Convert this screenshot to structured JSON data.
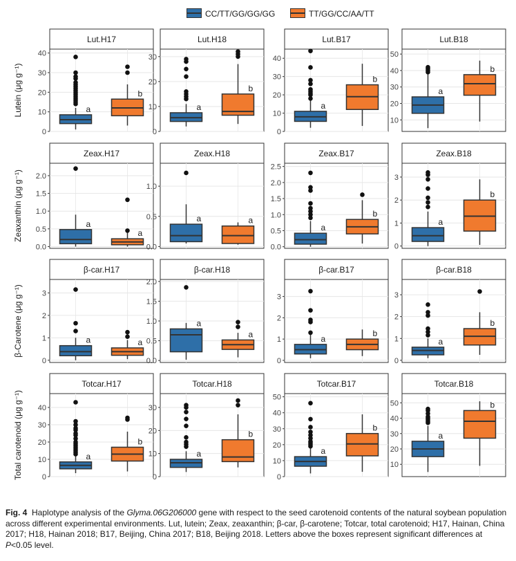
{
  "legend": [
    {
      "label": "CC/TT/GG/GG/GG",
      "color": "#2e6fa8"
    },
    {
      "label": "TT/GG/CC/AA/TT",
      "color": "#f07a2e"
    }
  ],
  "caption": {
    "fig": "Fig. 4",
    "pre": "Haplotype analysis of the",
    "gene": "Glyma.06G206000",
    "body": "gene with respect to the seed carotenoid contents of the natural soybean population across different experimental environments.  Lut, lutein; Zeax, zeaxanthin; β-car, β-carotene; Totcar, total carotenoid; H17, Hainan, China 2017; H18, Hainan 2018; B17, Beijing, China 2017; B18, Beijing 2018.  Letters above the boxes represent significant differences at",
    "p": "P",
    "post": "<0.05 level."
  },
  "chart_data": {
    "type": "boxplot",
    "groups": [
      "CC/TT/GG/GG/GG",
      "TT/GG/CC/AA/TT"
    ],
    "rows": [
      {
        "ylabel": "Lutein (μg g⁻¹)",
        "panels": [
          {
            "title": "Lut.H17",
            "ylim": [
              0,
              42
            ],
            "ticks": [
              0,
              10,
              20,
              30,
              40
            ],
            "boxes": [
              {
                "group": 0,
                "min": 1,
                "q1": 4,
                "median": 6,
                "q3": 8.5,
                "max": 12,
                "outliers": [
                  14,
                  15,
                  16,
                  17,
                  18,
                  19,
                  20,
                  21,
                  22,
                  23,
                  24,
                  25,
                  27,
                  28,
                  30,
                  38
                ],
                "letter": "a"
              },
              {
                "group": 1,
                "min": 3,
                "q1": 8,
                "median": 12,
                "q3": 16.5,
                "max": 24,
                "outliers": [
                  30,
                  33
                ],
                "letter": "b"
              }
            ]
          },
          {
            "title": "Lut.H18",
            "ylim": [
              0,
              33
            ],
            "ticks": [
              0,
              10,
              20,
              30
            ],
            "boxes": [
              {
                "group": 0,
                "min": 2,
                "q1": 4,
                "median": 5.5,
                "q3": 7.5,
                "max": 11,
                "outliers": [
                  13,
                  14,
                  15,
                  16,
                  22,
                  25,
                  28,
                  29
                ],
                "letter": "a"
              },
              {
                "group": 1,
                "min": 3,
                "q1": 6.5,
                "median": 8,
                "q3": 15,
                "max": 27,
                "outliers": [
                  30,
                  31,
                  32
                ],
                "letter": "b"
              }
            ]
          },
          {
            "title": "Lut.B17",
            "ylim": [
              0,
              45
            ],
            "ticks": [
              0,
              10,
              20,
              30,
              40
            ],
            "boxes": [
              {
                "group": 0,
                "min": 2,
                "q1": 5.5,
                "median": 8,
                "q3": 11,
                "max": 17,
                "outliers": [
                  18,
                  20,
                  21,
                  22,
                  23,
                  26,
                  28,
                  35,
                  44
                ],
                "letter": "a"
              },
              {
                "group": 1,
                "min": 3,
                "q1": 12,
                "median": 19,
                "q3": 25.5,
                "max": 37,
                "outliers": [],
                "letter": "b"
              }
            ]
          },
          {
            "title": "Lut.B18",
            "ylim": [
              3,
              53
            ],
            "ticks": [
              10,
              20,
              30,
              40,
              50
            ],
            "boxes": [
              {
                "group": 0,
                "min": 5,
                "q1": 14,
                "median": 19,
                "q3": 24,
                "max": 38,
                "outliers": [
                  39,
                  40,
                  41,
                  42
                ],
                "letter": "a"
              },
              {
                "group": 1,
                "min": 9,
                "q1": 25,
                "median": 32,
                "q3": 37.5,
                "max": 46,
                "outliers": [],
                "letter": "b"
              }
            ]
          }
        ]
      },
      {
        "ylabel": "Zeaxanthin (μg g⁻¹)",
        "panels": [
          {
            "title": "Zeax.H17",
            "ylim": [
              -0.05,
              2.35
            ],
            "ticks": [
              0.0,
              0.5,
              1.0,
              1.5,
              2.0
            ],
            "boxes": [
              {
                "group": 0,
                "min": 0,
                "q1": 0.08,
                "median": 0.2,
                "q3": 0.48,
                "max": 0.9,
                "outliers": [
                  2.2
                ],
                "letter": "a"
              },
              {
                "group": 1,
                "min": 0,
                "q1": 0.05,
                "median": 0.13,
                "q3": 0.22,
                "max": 0.4,
                "outliers": [
                  0.45,
                  1.32
                ],
                "letter": "a"
              }
            ]
          },
          {
            "title": "Zeax.H18",
            "ylim": [
              -0.03,
              1.38
            ],
            "ticks": [
              0.0,
              0.5,
              1.0
            ],
            "boxes": [
              {
                "group": 0,
                "min": 0.05,
                "q1": 0.08,
                "median": 0.18,
                "q3": 0.37,
                "max": 0.7,
                "outliers": [
                  1.22
                ],
                "letter": "a"
              },
              {
                "group": 1,
                "min": 0.03,
                "q1": 0.05,
                "median": 0.18,
                "q3": 0.34,
                "max": 0.4,
                "outliers": [],
                "letter": "a"
              }
            ]
          },
          {
            "title": "Zeax.B17",
            "ylim": [
              -0.05,
              2.6
            ],
            "ticks": [
              0.0,
              0.5,
              1.0,
              1.5,
              2.0,
              2.5
            ],
            "boxes": [
              {
                "group": 0,
                "min": 0,
                "q1": 0.08,
                "median": 0.22,
                "q3": 0.42,
                "max": 0.8,
                "outliers": [
                  0.9,
                  1.0,
                  1.1,
                  1.2,
                  1.35,
                  1.75,
                  1.85,
                  2.3
                ],
                "letter": "a"
              },
              {
                "group": 1,
                "min": 0.1,
                "q1": 0.4,
                "median": 0.62,
                "q3": 0.85,
                "max": 1.45,
                "outliers": [
                  1.62
                ],
                "letter": "b"
              }
            ]
          },
          {
            "title": "Zeax.B18",
            "ylim": [
              -0.1,
              3.6
            ],
            "ticks": [
              0,
              1,
              2,
              3
            ],
            "boxes": [
              {
                "group": 0,
                "min": 0,
                "q1": 0.2,
                "median": 0.45,
                "q3": 0.8,
                "max": 1.5,
                "outliers": [
                  1.7,
                  1.9,
                  2.1,
                  2.5,
                  2.9,
                  3.1,
                  3.2
                ],
                "letter": "a"
              },
              {
                "group": 1,
                "min": 0.05,
                "q1": 0.65,
                "median": 1.3,
                "q3": 2.0,
                "max": 2.9,
                "outliers": [],
                "letter": "b"
              }
            ]
          }
        ]
      },
      {
        "ylabel": "β-Carotene (μg g⁻¹)",
        "panels": [
          {
            "title": "β-car.H17",
            "ylim": [
              -0.1,
              3.6
            ],
            "ticks": [
              0,
              1,
              2,
              3
            ],
            "boxes": [
              {
                "group": 0,
                "min": 0,
                "q1": 0.2,
                "median": 0.38,
                "q3": 0.65,
                "max": 1.0,
                "outliers": [
                  1.3,
                  1.65,
                  3.15
                ],
                "letter": "a"
              },
              {
                "group": 1,
                "min": 0.05,
                "q1": 0.22,
                "median": 0.38,
                "q3": 0.55,
                "max": 0.9,
                "outliers": [
                  1.05,
                  1.25
                ],
                "letter": "a"
              }
            ]
          },
          {
            "title": "β-car.H18",
            "ylim": [
              -0.05,
              2.05
            ],
            "ticks": [
              0.0,
              0.5,
              1.0,
              1.5,
              2.0
            ],
            "boxes": [
              {
                "group": 0,
                "min": 0.02,
                "q1": 0.22,
                "median": 0.65,
                "q3": 0.8,
                "max": 0.95,
                "outliers": [
                  1.85
                ],
                "letter": "a"
              },
              {
                "group": 1,
                "min": 0.08,
                "q1": 0.28,
                "median": 0.4,
                "q3": 0.52,
                "max": 0.7,
                "outliers": [
                  0.85,
                  0.97
                ],
                "letter": "a"
              }
            ]
          },
          {
            "title": "β-car.B17",
            "ylim": [
              -0.1,
              3.8
            ],
            "ticks": [
              0,
              1,
              2,
              3
            ],
            "boxes": [
              {
                "group": 0,
                "min": 0.1,
                "q1": 0.3,
                "median": 0.5,
                "q3": 0.75,
                "max": 1.2,
                "outliers": [
                  1.3,
                  1.8,
                  1.9,
                  2.35,
                  3.25
                ],
                "letter": "a"
              },
              {
                "group": 1,
                "min": 0.2,
                "q1": 0.5,
                "median": 0.75,
                "q3": 1.0,
                "max": 1.45,
                "outliers": [],
                "letter": "b"
              }
            ]
          },
          {
            "title": "β-car.B18",
            "ylim": [
              -0.1,
              3.7
            ],
            "ticks": [
              0,
              1,
              2,
              3
            ],
            "boxes": [
              {
                "group": 0,
                "min": 0.1,
                "q1": 0.25,
                "median": 0.45,
                "q3": 0.6,
                "max": 1.0,
                "outliers": [
                  1.15,
                  1.3,
                  1.45,
                  2.05,
                  2.2,
                  2.55
                ],
                "letter": "a"
              },
              {
                "group": 1,
                "min": 0.25,
                "q1": 0.7,
                "median": 1.1,
                "q3": 1.45,
                "max": 2.2,
                "outliers": [
                  3.15
                ],
                "letter": "b"
              }
            ]
          }
        ]
      },
      {
        "ylabel": "Total carotenoid (μg g⁻¹)",
        "panels": [
          {
            "title": "Totcar.H17",
            "ylim": [
              0,
              48
            ],
            "ticks": [
              0,
              10,
              20,
              30,
              40
            ],
            "boxes": [
              {
                "group": 0,
                "min": 2,
                "q1": 4.5,
                "median": 6.5,
                "q3": 8.5,
                "max": 12,
                "outliers": [
                  13,
                  14,
                  15,
                  16,
                  17,
                  18,
                  19,
                  20,
                  22,
                  24,
                  25,
                  27,
                  28,
                  30,
                  32,
                  43
                ],
                "letter": "a"
              },
              {
                "group": 1,
                "min": 3,
                "q1": 9,
                "median": 13,
                "q3": 17,
                "max": 26,
                "outliers": [
                  33,
                  34
                ],
                "letter": "b"
              }
            ]
          },
          {
            "title": "Totcar.H18",
            "ylim": [
              0,
              36
            ],
            "ticks": [
              0,
              10,
              20,
              30
            ],
            "boxes": [
              {
                "group": 0,
                "min": 2,
                "q1": 4,
                "median": 6,
                "q3": 7.5,
                "max": 11,
                "outliers": [
                  13,
                  14,
                  15,
                  17,
                  22,
                  25,
                  28,
                  30,
                  31
                ],
                "letter": "a"
              },
              {
                "group": 1,
                "min": 4,
                "q1": 6.5,
                "median": 8.5,
                "q3": 16,
                "max": 27,
                "outliers": [
                  31,
                  33
                ],
                "letter": "b"
              }
            ]
          },
          {
            "title": "Totcar.B17",
            "ylim": [
              0,
              52
            ],
            "ticks": [
              0,
              10,
              20,
              30,
              40,
              50
            ],
            "boxes": [
              {
                "group": 0,
                "min": 2,
                "q1": 6.5,
                "median": 9.5,
                "q3": 12.5,
                "max": 18,
                "outliers": [
                  19,
                  20,
                  21,
                  22,
                  24,
                  26,
                  28,
                  31,
                  36,
                  46
                ],
                "letter": "a"
              },
              {
                "group": 1,
                "min": 3,
                "q1": 13,
                "median": 20.5,
                "q3": 27,
                "max": 39,
                "outliers": [],
                "letter": "b"
              }
            ]
          },
          {
            "title": "Totcar.B18",
            "ylim": [
              2,
              56
            ],
            "ticks": [
              10,
              20,
              30,
              40,
              50
            ],
            "boxes": [
              {
                "group": 0,
                "min": 5,
                "q1": 15,
                "median": 20,
                "q3": 25,
                "max": 35,
                "outliers": [
                  37,
                  38,
                  39,
                  40,
                  41,
                  43,
                  45,
                  46
                ],
                "letter": "a"
              },
              {
                "group": 1,
                "min": 9,
                "q1": 27,
                "median": 38,
                "q3": 45,
                "max": 51,
                "outliers": [],
                "letter": "b"
              }
            ]
          }
        ]
      }
    ]
  }
}
